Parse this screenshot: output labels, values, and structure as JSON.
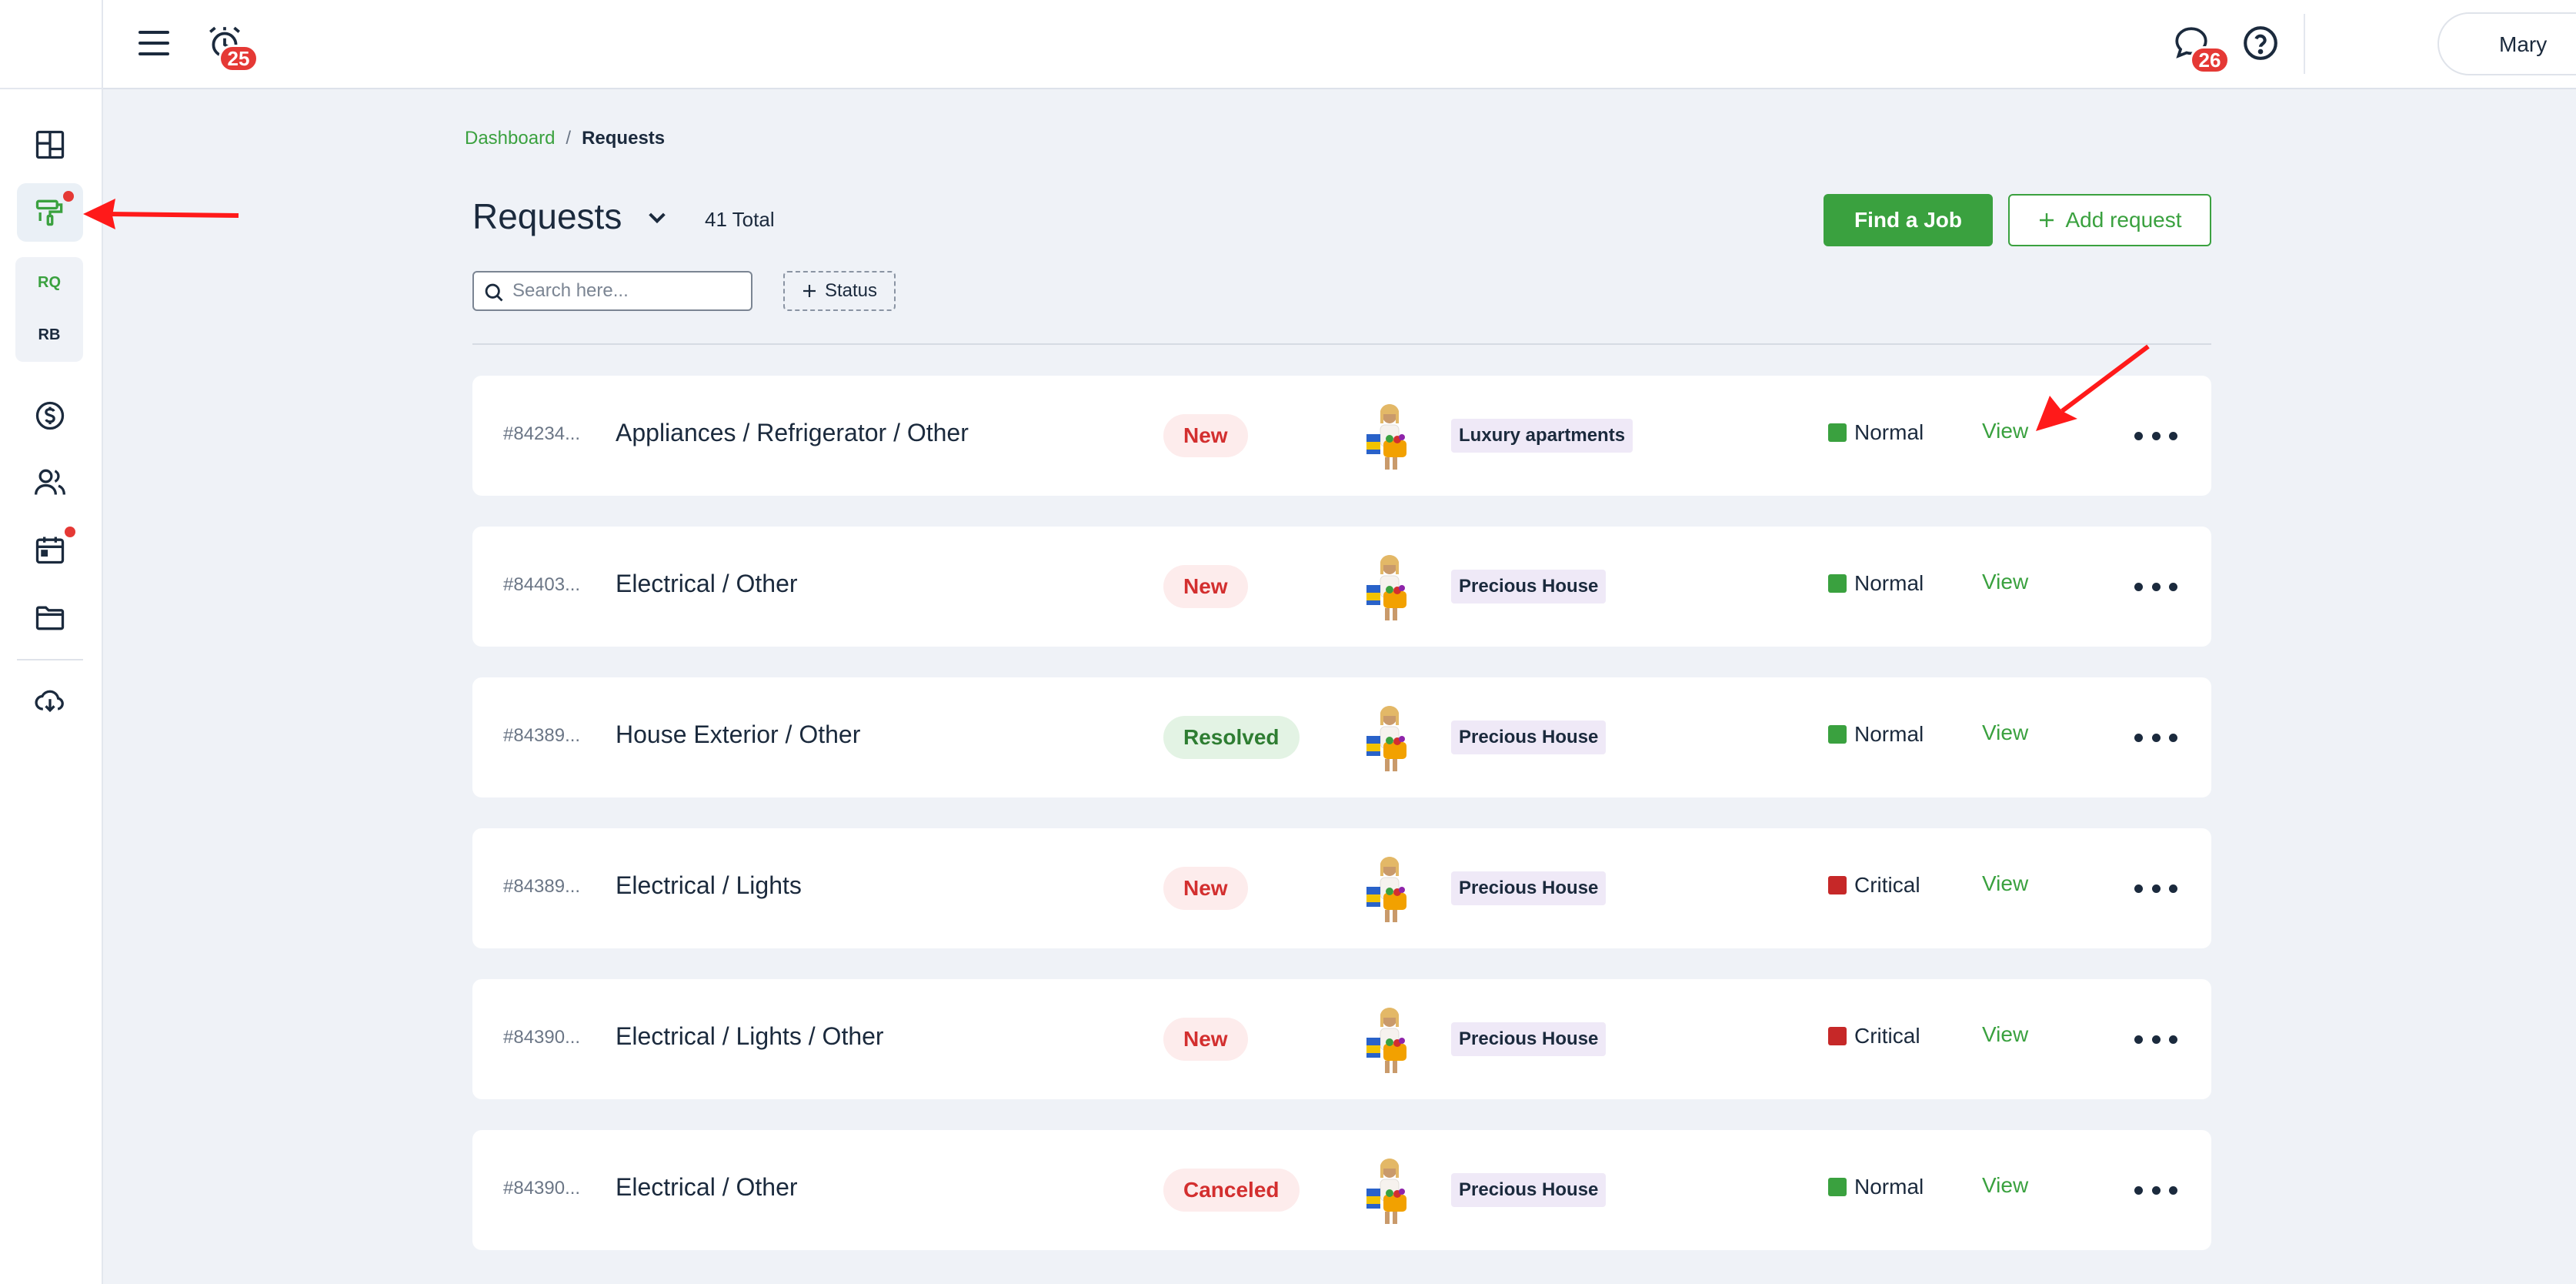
{
  "colors": {
    "accent": "#3aa13f",
    "badge": "#e53935",
    "normal": "#3aa13f",
    "critical": "#c62828",
    "annotation": "#ff1a1a"
  },
  "sidebar": {
    "items": [
      {
        "icon": "dashboard-grid-icon"
      },
      {
        "icon": "paint-roller-icon",
        "active": true
      },
      {
        "icon": "dollar-circle-icon"
      },
      {
        "icon": "users-icon"
      },
      {
        "icon": "calendar-icon"
      },
      {
        "icon": "folder-icon"
      },
      {
        "icon": "cloud-download-icon"
      }
    ],
    "sub_items": [
      "RQ",
      "RB"
    ]
  },
  "topbar": {
    "alarm_badge": "25",
    "messages_badge": "26",
    "user_name": "Mary"
  },
  "breadcrumb": {
    "home": "Dashboard",
    "separator": "/",
    "current": "Requests"
  },
  "header": {
    "title": "Requests",
    "total": "41 Total",
    "find_job_label": "Find a Job",
    "add_request_label": "Add request"
  },
  "filters": {
    "search_placeholder": "Search here...",
    "status_label": "Status"
  },
  "requests": [
    {
      "id": "#84234...",
      "title": "Appliances / Refrigerator / Other",
      "status": "New",
      "property": "Luxury apartments",
      "priority": "Normal",
      "action": "View"
    },
    {
      "id": "#84403...",
      "title": "Electrical / Other",
      "status": "New",
      "property": "Precious House",
      "priority": "Normal",
      "action": "View"
    },
    {
      "id": "#84389...",
      "title": "House Exterior / Other",
      "status": "Resolved",
      "property": "Precious House",
      "priority": "Normal",
      "action": "View"
    },
    {
      "id": "#84389...",
      "title": "Electrical / Lights",
      "status": "New",
      "property": "Precious House",
      "priority": "Critical",
      "action": "View"
    },
    {
      "id": "#84390...",
      "title": "Electrical / Lights / Other",
      "status": "New",
      "property": "Precious House",
      "priority": "Critical",
      "action": "View"
    },
    {
      "id": "#84390...",
      "title": "Electrical / Other",
      "status": "Canceled",
      "property": "Precious House",
      "priority": "Normal",
      "action": "View"
    }
  ]
}
